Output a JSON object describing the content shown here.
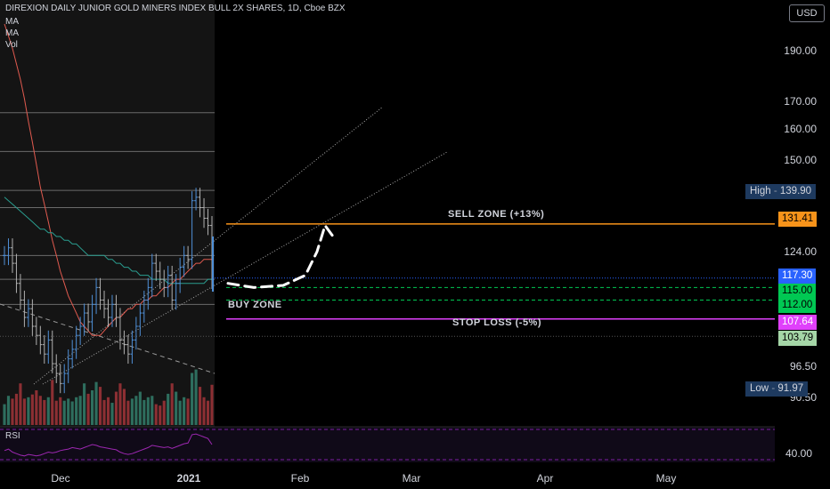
{
  "header": {
    "title": "DIREXION DAILY JUNIOR GOLD MINERS INDEX BULL 2X SHARES, 1D, Cboe BZX",
    "indicators": [
      "MA",
      "MA",
      "Vol"
    ],
    "currency": "USD",
    "rsi_label": "RSI"
  },
  "zones": {
    "sell": "SELL ZONE (+13%)",
    "buy": "BUY ZONE",
    "stop": "STOP LOSS (-5%)"
  },
  "price_tags": {
    "sell": "131.41",
    "current": "117.30",
    "buy_top": "115.00",
    "buy_bottom": "112.00",
    "stop": "107.64",
    "support": "103.79",
    "high_label": "High",
    "high_value": "139.90",
    "low_label": "Low",
    "low_value": "91.97"
  },
  "axis": {
    "y_ticks": [
      "190.00",
      "170.00",
      "160.00",
      "150.00",
      "124.00",
      "96.50",
      "90.50"
    ],
    "rsi_tick": "40.00",
    "x_ticks": [
      "Dec",
      "2021",
      "Feb",
      "Mar",
      "Apr",
      "May"
    ]
  },
  "colors": {
    "sell": "#f7931a",
    "current": "#2962ff",
    "buy": "#00c853",
    "stop": "#e040fb",
    "support": "#a5d6a7",
    "stop_text": "#ab47bc",
    "buy_text": "#4caf50",
    "candle": "#4f8fd6",
    "vol_up": "#2e6e5e",
    "vol_down": "#8c2f33"
  },
  "chart_data": {
    "type": "line",
    "title": "DIREXION DAILY JUNIOR GOLD MINERS INDEX BULL 2X SHARES, 1D, Cboe BZX",
    "y_scale": "log",
    "ylim": [
      85,
      215
    ],
    "x_range": [
      "2020-11-19",
      "2021-05-31"
    ],
    "levels": {
      "sell_zone": 131.41,
      "buy_zone": [
        112.0,
        115.0
      ],
      "stop_loss": 107.64,
      "support": 103.79,
      "last_price": 117.3,
      "period_high": 139.9,
      "period_low": 91.97
    },
    "horizontal_levels": [
      166,
      153,
      141,
      136,
      123,
      117,
      111
    ],
    "price_series": {
      "name": "",
      "values": [
        123,
        125,
        121,
        116,
        112,
        108,
        110,
        106,
        104,
        102,
        100,
        103,
        98,
        96,
        94,
        96,
        99,
        101,
        104,
        106,
        109,
        107,
        111,
        115,
        112,
        110,
        108,
        111,
        108,
        103,
        102,
        100,
        103,
        106,
        109,
        112,
        115,
        121,
        119,
        117,
        115,
        118,
        112,
        116,
        120,
        123,
        122,
        138,
        139,
        136,
        133,
        131,
        117
      ]
    },
    "ma_red": [
      200,
      195,
      190,
      184,
      178,
      171,
      163,
      156,
      149,
      142,
      137,
      132,
      127,
      123,
      119,
      116,
      113,
      111,
      109,
      107,
      106,
      105,
      104,
      104,
      104,
      105,
      106,
      107,
      108,
      108,
      109,
      110,
      110,
      111,
      111,
      112,
      112,
      113,
      113,
      114,
      115,
      115,
      116,
      117,
      117,
      118,
      119,
      120,
      121,
      121,
      122,
      122,
      122
    ],
    "ma_teal": [
      139,
      138,
      137,
      136,
      135,
      134,
      133,
      132,
      131,
      130,
      130,
      129,
      129,
      128,
      128,
      127,
      127,
      126,
      126,
      125,
      124,
      123,
      123,
      123,
      123,
      123,
      122,
      122,
      121,
      121,
      120,
      120,
      119,
      119,
      118,
      118,
      118,
      117,
      117,
      117,
      117,
      116,
      116,
      116,
      116,
      116,
      116,
      116,
      116,
      116,
      116,
      117,
      117
    ],
    "volume": [
      30,
      42,
      38,
      45,
      60,
      38,
      40,
      44,
      50,
      42,
      36,
      40,
      65,
      35,
      40,
      35,
      38,
      34,
      40,
      42,
      60,
      45,
      50,
      62,
      55,
      36,
      40,
      32,
      48,
      60,
      52,
      35,
      38,
      42,
      48,
      36,
      40,
      42,
      30,
      28,
      35,
      45,
      60,
      48,
      35,
      40,
      38,
      75,
      80,
      55,
      40,
      35,
      58
    ],
    "vol_direction": [
      1,
      1,
      0,
      0,
      0,
      0,
      1,
      0,
      0,
      0,
      0,
      1,
      0,
      0,
      0,
      1,
      1,
      1,
      1,
      1,
      1,
      0,
      1,
      1,
      0,
      0,
      0,
      1,
      0,
      0,
      0,
      0,
      1,
      1,
      1,
      1,
      1,
      1,
      0,
      0,
      0,
      1,
      0,
      1,
      1,
      1,
      0,
      1,
      1,
      0,
      0,
      0,
      0
    ],
    "rsi": [
      42,
      44,
      40,
      38,
      36,
      35,
      37,
      36,
      35,
      36,
      38,
      40,
      39,
      40,
      42,
      43,
      44,
      46,
      45,
      44,
      46,
      48,
      50,
      49,
      47,
      46,
      45,
      44,
      43,
      40,
      38,
      37,
      38,
      40,
      42,
      44,
      46,
      49,
      48,
      47,
      46,
      47,
      45,
      47,
      49,
      51,
      52,
      63,
      64,
      62,
      60,
      58,
      50
    ],
    "rsi_band": [
      30,
      70
    ],
    "channel_upper": {
      "from": 89,
      "to": 168
    },
    "channel_lower": {
      "from": 70,
      "to": 150
    },
    "projection_path": [
      116,
      115,
      115.5,
      118,
      124,
      131,
      128
    ]
  }
}
